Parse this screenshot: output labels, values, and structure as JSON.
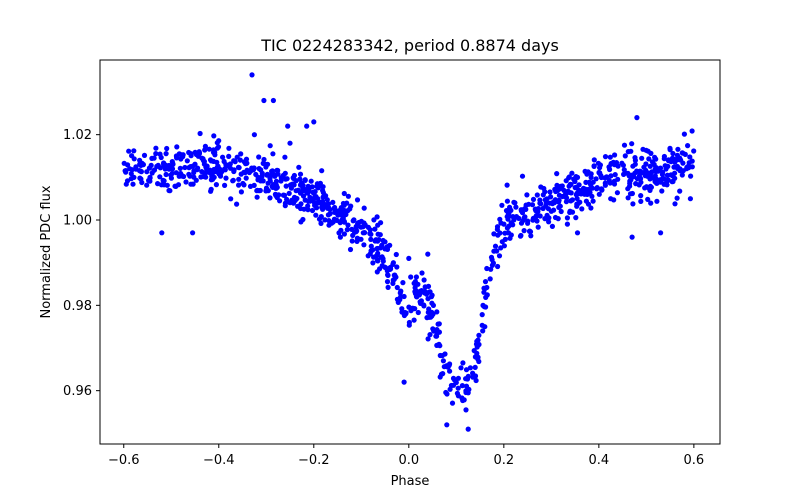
{
  "chart_data": {
    "type": "scatter",
    "title": "TIC 0224283342, period 0.8874 days",
    "xlabel": "Phase",
    "ylabel": "Normalized PDC flux",
    "xlim": [
      -0.65,
      0.655
    ],
    "ylim": [
      0.9475,
      1.0375
    ],
    "xticks": [
      -0.6,
      -0.4,
      -0.2,
      0.0,
      0.2,
      0.4,
      0.6
    ],
    "xtick_labels": [
      "−0.6",
      "−0.4",
      "−0.2",
      "0.0",
      "0.2",
      "0.4",
      "0.6"
    ],
    "yticks": [
      0.96,
      0.98,
      1.0,
      1.02
    ],
    "ytick_labels": [
      "0.96",
      "0.98",
      "1.00",
      "1.02"
    ],
    "grid": false,
    "marker_color": "#0000ff",
    "series": [
      {
        "name": "flux",
        "model": {
          "phase_range": [
            -0.6,
            0.6
          ],
          "n_points": 1100,
          "baseline": [
            [
              -0.6,
              1.012
            ],
            [
              -0.4,
              1.013
            ],
            [
              -0.3,
              1.01
            ],
            [
              -0.2,
              1.005
            ],
            [
              -0.1,
              0.998
            ],
            [
              -0.05,
              0.992
            ],
            [
              -0.02,
              0.983
            ],
            [
              0.0,
              0.978
            ],
            [
              0.015,
              0.983
            ],
            [
              0.035,
              0.983
            ],
            [
              0.055,
              0.975
            ],
            [
              0.075,
              0.965
            ],
            [
              0.1,
              0.961
            ],
            [
              0.125,
              0.96
            ],
            [
              0.145,
              0.968
            ],
            [
              0.16,
              0.982
            ],
            [
              0.18,
              0.993
            ],
            [
              0.2,
              1.0
            ],
            [
              0.25,
              1.002
            ],
            [
              0.3,
              1.004
            ],
            [
              0.4,
              1.009
            ],
            [
              0.5,
              1.011
            ],
            [
              0.6,
              1.013
            ]
          ],
          "noise_sigma": 0.0028,
          "extra_points": [
            [
              -0.33,
              1.034
            ],
            [
              -0.305,
              1.028
            ],
            [
              -0.285,
              1.028
            ],
            [
              -0.255,
              1.022
            ],
            [
              -0.2,
              1.023
            ],
            [
              -0.215,
              1.022
            ],
            [
              -0.25,
              1.018
            ],
            [
              -0.52,
              0.997
            ],
            [
              -0.455,
              0.997
            ],
            [
              -0.325,
              1.02
            ],
            [
              0.48,
              1.024
            ],
            [
              0.355,
              0.997
            ],
            [
              0.47,
              0.996
            ],
            [
              0.53,
              0.997
            ],
            [
              0.08,
              0.952
            ],
            [
              0.125,
              0.951
            ],
            [
              -0.01,
              0.962
            ],
            [
              0.16,
              0.975
            ],
            [
              0.04,
              0.992
            ],
            [
              0.0,
              0.991
            ]
          ]
        }
      }
    ]
  }
}
